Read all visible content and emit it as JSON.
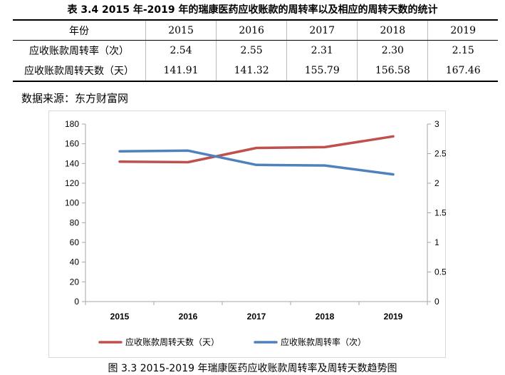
{
  "table": {
    "title": "表 3.4 2015 年-2019 年的瑞康医药应收账款的周转率以及相应的周转天数的统计",
    "header": [
      "年份",
      "2015",
      "2016",
      "2017",
      "2018",
      "2019"
    ],
    "rows": [
      [
        "应收账款周转率（次）",
        "2.54",
        "2.55",
        "2.31",
        "2.30",
        "2.15"
      ],
      [
        "应收账款周转天数（天）",
        "141.91",
        "141.32",
        "155.79",
        "156.58",
        "167.46"
      ]
    ]
  },
  "source_note": "数据来源：东方财富网",
  "figure_caption": "图 3.3 2015-2019 年瑞康医药应收账款周转率及周转天数趋势图",
  "chart_data": {
    "type": "line",
    "categories": [
      "2015",
      "2016",
      "2017",
      "2018",
      "2019"
    ],
    "series": [
      {
        "name": "应收账款周转天数（天）",
        "axis": "left",
        "color": "#c0504d",
        "values": [
          141.91,
          141.32,
          155.79,
          156.58,
          167.46
        ]
      },
      {
        "name": "应收账款周转率（次）",
        "axis": "right",
        "color": "#4f81bd",
        "values": [
          2.54,
          2.55,
          2.31,
          2.3,
          2.15
        ]
      }
    ],
    "ylim_left": [
      0,
      180
    ],
    "yticks_left": [
      "0",
      "20",
      "40",
      "60",
      "80",
      "100",
      "120",
      "140",
      "160",
      "180"
    ],
    "ylim_right": [
      0,
      3
    ],
    "yticks_right": [
      "0",
      "0.5",
      "1",
      "1.5",
      "2",
      "2.5",
      "3"
    ],
    "grid": false,
    "legend_position": "bottom"
  }
}
